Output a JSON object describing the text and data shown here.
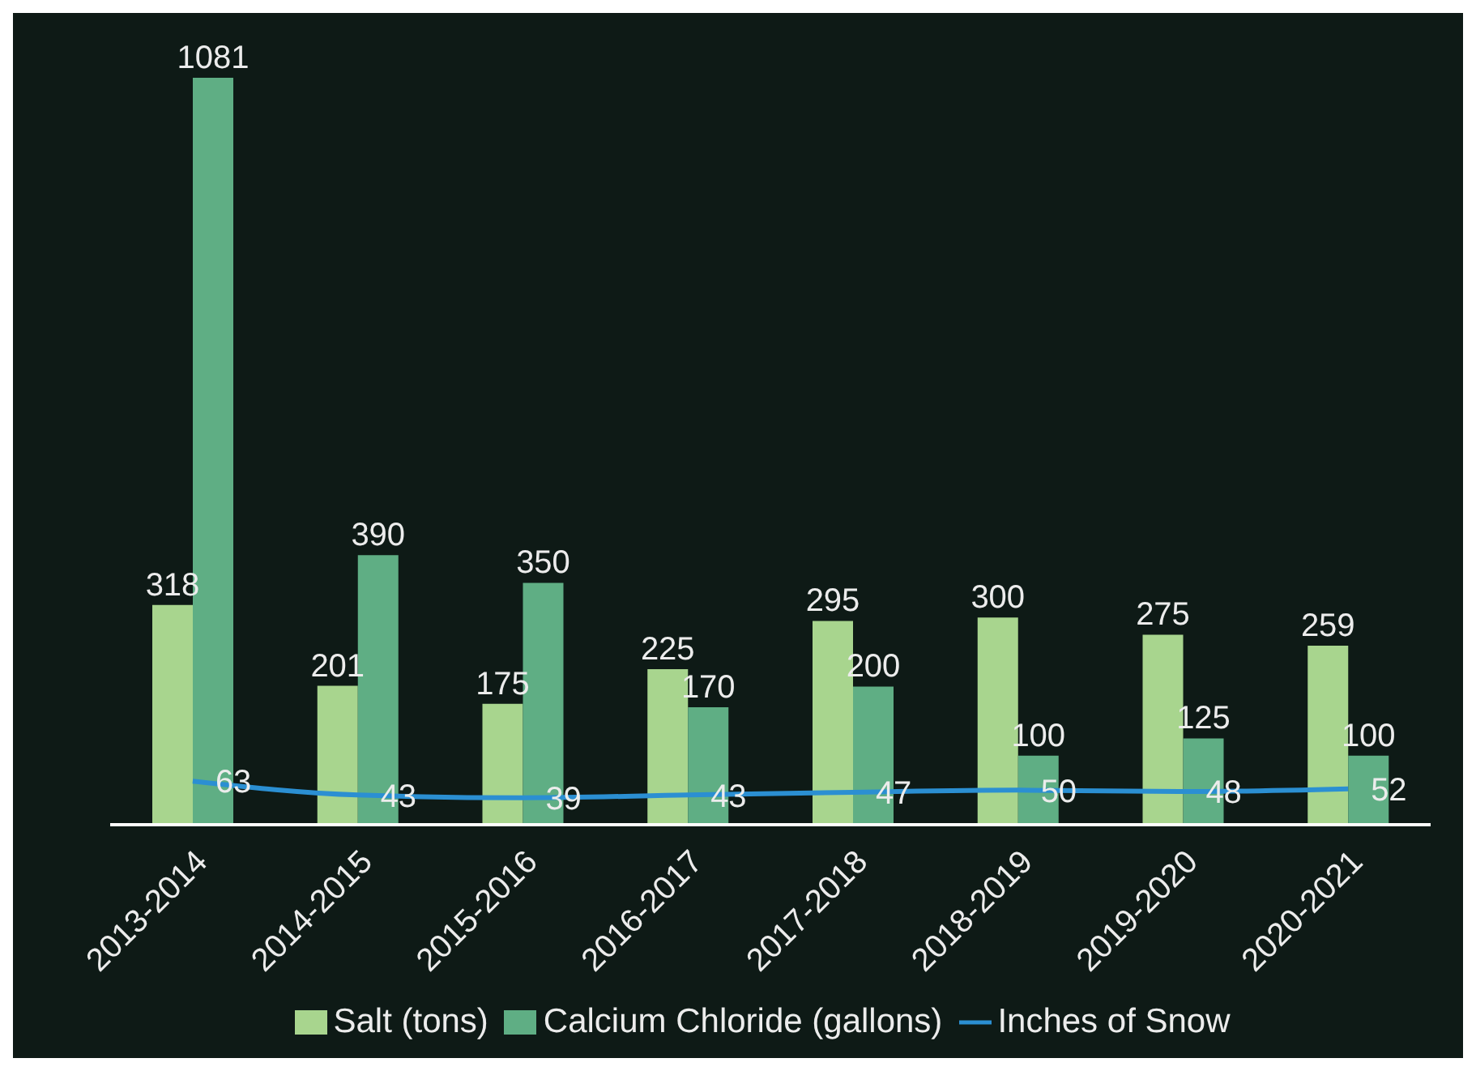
{
  "chart_data": {
    "type": "bar",
    "categories": [
      "2013-2014",
      "2014-2015",
      "2015-2016",
      "2016-2017",
      "2017-2018",
      "2018-2019",
      "2019-2020",
      "2020-2021"
    ],
    "series": [
      {
        "name": "Salt (tons)",
        "color": "#a8d58e",
        "values": [
          318,
          201,
          175,
          225,
          295,
          300,
          275,
          259
        ]
      },
      {
        "name": "Calcium Chloride (gallons)",
        "color": "#5fae84",
        "values": [
          1081,
          390,
          350,
          170,
          200,
          100,
          125,
          100
        ]
      },
      {
        "name": "Inches of Snow",
        "type": "line",
        "color": "#2b8fd2",
        "values": [
          63,
          43,
          39,
          43,
          47,
          50,
          48,
          52
        ]
      }
    ],
    "data_labels": true,
    "legend": "bottom",
    "grid": false,
    "marker": "none",
    "line_style": "solid"
  }
}
